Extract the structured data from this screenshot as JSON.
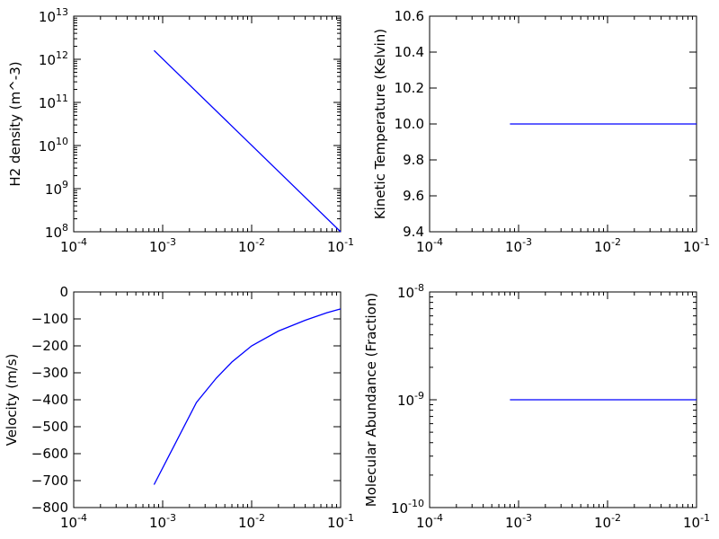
{
  "colors": {
    "series": "#0000ff",
    "axes": "#000000",
    "background": "#ffffff"
  },
  "chart_data": [
    {
      "type": "line",
      "position": "top-left",
      "title": "",
      "xlabel": "",
      "ylabel": "H2 density (m^-3)",
      "xscale": "log",
      "yscale": "log",
      "xlim": [
        0.0001,
        0.1
      ],
      "ylim": [
        100000000,
        10000000000000
      ],
      "xticks": [
        {
          "value": 0.0001,
          "base": "10",
          "exp": "-4"
        },
        {
          "value": 0.001,
          "base": "10",
          "exp": "-3"
        },
        {
          "value": 0.01,
          "base": "10",
          "exp": "-2"
        },
        {
          "value": 0.1,
          "base": "10",
          "exp": "-1"
        }
      ],
      "yticks": [
        {
          "value": 100000000,
          "base": "10",
          "exp": "8"
        },
        {
          "value": 1000000000,
          "base": "10",
          "exp": "9"
        },
        {
          "value": 10000000000,
          "base": "10",
          "exp": "10"
        },
        {
          "value": 100000000000,
          "base": "10",
          "exp": "11"
        },
        {
          "value": 1000000000000,
          "base": "10",
          "exp": "12"
        },
        {
          "value": 10000000000000,
          "base": "10",
          "exp": "13"
        }
      ],
      "series": [
        {
          "x": [
            0.0008,
            0.1
          ],
          "y": [
            1600000000000,
            100000000
          ]
        }
      ]
    },
    {
      "type": "line",
      "position": "top-right",
      "title": "",
      "xlabel": "",
      "ylabel": "Kinetic Temperature (Kelvin)",
      "xscale": "log",
      "yscale": "linear",
      "xlim": [
        0.0001,
        0.1
      ],
      "ylim": [
        9.4,
        10.6
      ],
      "xticks": [
        {
          "value": 0.0001,
          "base": "10",
          "exp": "-4"
        },
        {
          "value": 0.001,
          "base": "10",
          "exp": "-3"
        },
        {
          "value": 0.01,
          "base": "10",
          "exp": "-2"
        },
        {
          "value": 0.1,
          "base": "10",
          "exp": "-1"
        }
      ],
      "yticks": [
        {
          "value": 9.4,
          "label": "9.4"
        },
        {
          "value": 9.6,
          "label": "9.6"
        },
        {
          "value": 9.8,
          "label": "9.8"
        },
        {
          "value": 10.0,
          "label": "10.0"
        },
        {
          "value": 10.2,
          "label": "10.2"
        },
        {
          "value": 10.4,
          "label": "10.4"
        },
        {
          "value": 10.6,
          "label": "10.6"
        }
      ],
      "series": [
        {
          "x": [
            0.0008,
            0.1
          ],
          "y": [
            10.0,
            10.0
          ]
        }
      ]
    },
    {
      "type": "line",
      "position": "bottom-left",
      "title": "",
      "xlabel": "",
      "ylabel": "Velocity (m/s)",
      "xscale": "log",
      "yscale": "linear",
      "xlim": [
        0.0001,
        0.1
      ],
      "ylim": [
        -800,
        0
      ],
      "xticks": [
        {
          "value": 0.0001,
          "base": "10",
          "exp": "-4"
        },
        {
          "value": 0.001,
          "base": "10",
          "exp": "-3"
        },
        {
          "value": 0.01,
          "base": "10",
          "exp": "-2"
        },
        {
          "value": 0.1,
          "base": "10",
          "exp": "-1"
        }
      ],
      "yticks": [
        {
          "value": 0,
          "label": "0"
        },
        {
          "value": -100,
          "label": "−100"
        },
        {
          "value": -200,
          "label": "−200"
        },
        {
          "value": -300,
          "label": "−300"
        },
        {
          "value": -400,
          "label": "−400"
        },
        {
          "value": -500,
          "label": "−500"
        },
        {
          "value": -600,
          "label": "−600"
        },
        {
          "value": -700,
          "label": "−700"
        },
        {
          "value": -800,
          "label": "−800"
        }
      ],
      "series": [
        {
          "x": [
            0.0008,
            0.0024,
            0.004,
            0.006,
            0.01,
            0.02,
            0.04,
            0.07,
            0.1
          ],
          "y": [
            -715,
            -410,
            -320,
            -260,
            -200,
            -145,
            -105,
            -77,
            -63
          ]
        }
      ]
    },
    {
      "type": "line",
      "position": "bottom-right",
      "title": "",
      "xlabel": "",
      "ylabel": "Molecular Abundance (Fraction)",
      "xscale": "log",
      "yscale": "log",
      "xlim": [
        0.0001,
        0.1
      ],
      "ylim": [
        1e-10,
        1e-08
      ],
      "xticks": [
        {
          "value": 0.0001,
          "base": "10",
          "exp": "-4"
        },
        {
          "value": 0.001,
          "base": "10",
          "exp": "-3"
        },
        {
          "value": 0.01,
          "base": "10",
          "exp": "-2"
        },
        {
          "value": 0.1,
          "base": "10",
          "exp": "-1"
        }
      ],
      "yticks": [
        {
          "value": 1e-10,
          "base": "10",
          "exp": "-10"
        },
        {
          "value": 1e-09,
          "base": "10",
          "exp": "-9"
        },
        {
          "value": 1e-08,
          "base": "10",
          "exp": "-8"
        }
      ],
      "series": [
        {
          "x": [
            0.0008,
            0.1
          ],
          "y": [
            1e-09,
            1e-09
          ]
        }
      ]
    }
  ]
}
